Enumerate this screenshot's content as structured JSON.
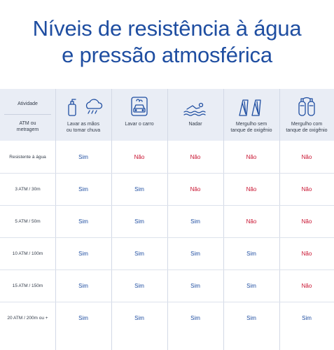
{
  "title": {
    "line1": "Níveis de resistência à água",
    "line2": "e pressão atmosférica"
  },
  "header": {
    "activity_label": "Atividade",
    "pressure_label_line1": "ATM ou",
    "pressure_label_line2": "metragem",
    "columns": [
      {
        "line1": "Lavar as mãos",
        "line2": "ou tomar chuva",
        "icon": "hand-wash-rain-icon"
      },
      {
        "line1": "Lavar o carro",
        "line2": "",
        "icon": "car-wash-icon"
      },
      {
        "line1": "Nadar",
        "line2": "",
        "icon": "swimming-icon"
      },
      {
        "line1": "Mergulho sem",
        "line2": "tanque de oxigênio",
        "icon": "fins-icon"
      },
      {
        "line1": "Mergulho com",
        "line2": "tanque de oxigênio",
        "icon": "oxygen-tank-icon"
      }
    ]
  },
  "rows": [
    {
      "label": "Resistente à água",
      "values": [
        "Sim",
        "Não",
        "Não",
        "Não",
        "Não"
      ]
    },
    {
      "label": "3 ATM / 30m",
      "values": [
        "Sim",
        "Sim",
        "Não",
        "Não",
        "Não"
      ]
    },
    {
      "label": "5 ATM / 50m",
      "values": [
        "Sim",
        "Sim",
        "Sim",
        "Não",
        "Não"
      ]
    },
    {
      "label": "10 ATM / 100m",
      "values": [
        "Sim",
        "Sim",
        "Sim",
        "Sim",
        "Não"
      ]
    },
    {
      "label": "15 ATM / 150m",
      "values": [
        "Sim",
        "Sim",
        "Sim",
        "Sim",
        "Não"
      ]
    },
    {
      "label": "20 ATM / 200m ou +",
      "values": [
        "Sim",
        "Sim",
        "Sim",
        "Sim",
        "Sim"
      ]
    }
  ],
  "colors": {
    "title": "#1f4ea1",
    "yes": "#1f4ea1",
    "no": "#c8102e",
    "header_bg": "#e9edf5"
  }
}
